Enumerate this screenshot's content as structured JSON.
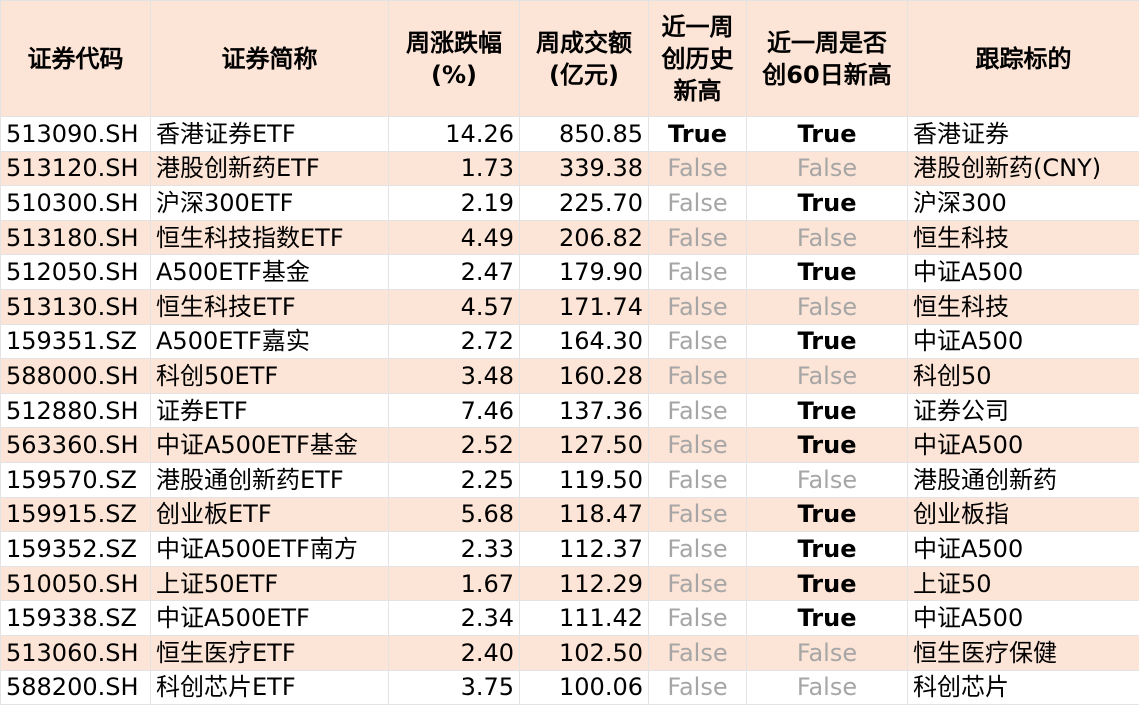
{
  "table": {
    "header": [
      "证券代码",
      "证券简称",
      "周涨跌幅\n(%)",
      "周成交额\n(亿元)",
      "近一周\n创历史\n新高",
      "近一周是否\n创60日新高",
      "跟踪标的"
    ],
    "rows": [
      [
        "513090.SH",
        "香港证券ETF",
        "14.26",
        "850.85",
        "True",
        "True",
        "香港证券"
      ],
      [
        "513120.SH",
        "港股创新药ETF",
        "1.73",
        "339.38",
        "False",
        "False",
        "港股创新药(CNY)"
      ],
      [
        "510300.SH",
        "沪深300ETF",
        "2.19",
        "225.70",
        "False",
        "True",
        "沪深300"
      ],
      [
        "513180.SH",
        "恒生科技指数ETF",
        "4.49",
        "206.82",
        "False",
        "False",
        "恒生科技"
      ],
      [
        "512050.SH",
        "A500ETF基金",
        "2.47",
        "179.90",
        "False",
        "True",
        "中证A500"
      ],
      [
        "513130.SH",
        "恒生科技ETF",
        "4.57",
        "171.74",
        "False",
        "False",
        "恒生科技"
      ],
      [
        "159351.SZ",
        "A500ETF嘉实",
        "2.72",
        "164.30",
        "False",
        "True",
        "中证A500"
      ],
      [
        "588000.SH",
        "科创50ETF",
        "3.48",
        "160.28",
        "False",
        "False",
        "科创50"
      ],
      [
        "512880.SH",
        "证券ETF",
        "7.46",
        "137.36",
        "False",
        "True",
        "证券公司"
      ],
      [
        "563360.SH",
        "中证A500ETF基金",
        "2.52",
        "127.50",
        "False",
        "True",
        "中证A500"
      ],
      [
        "159570.SZ",
        "港股通创新药ETF",
        "2.25",
        "119.50",
        "False",
        "False",
        "港股通创新药"
      ],
      [
        "159915.SZ",
        "创业板ETF",
        "5.68",
        "118.47",
        "False",
        "True",
        "创业板指"
      ],
      [
        "159352.SZ",
        "中证A500ETF南方",
        "2.33",
        "112.37",
        "False",
        "True",
        "中证A500"
      ],
      [
        "510050.SH",
        "上证50ETF",
        "1.67",
        "112.29",
        "False",
        "True",
        "上证50"
      ],
      [
        "159338.SZ",
        "中证A500ETF",
        "2.34",
        "111.42",
        "False",
        "True",
        "中证A500"
      ],
      [
        "513060.SH",
        "恒生医疗ETF",
        "2.40",
        "102.50",
        "False",
        "False",
        "恒生医疗保健"
      ],
      [
        "588200.SH",
        "科创芯片ETF",
        "3.75",
        "100.06",
        "False",
        "False",
        "科创芯片"
      ]
    ]
  }
}
